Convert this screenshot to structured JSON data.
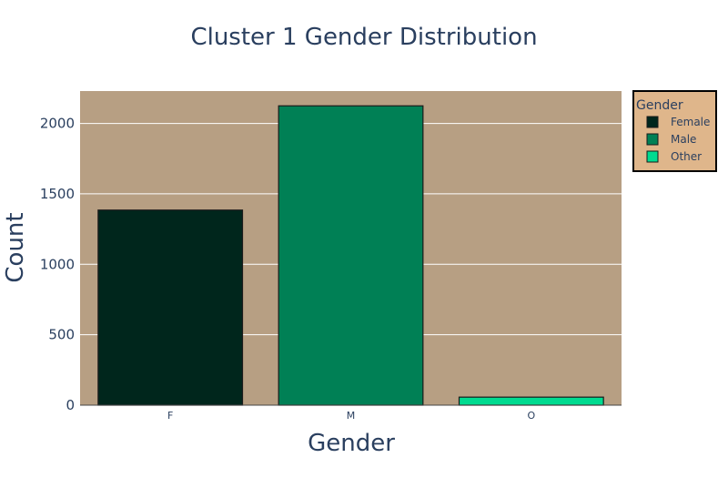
{
  "chart_data": {
    "type": "bar",
    "title": "Cluster 1 Gender Distribution",
    "xlabel": "Gender",
    "ylabel": "Count",
    "categories": [
      "F",
      "M",
      "O"
    ],
    "values": [
      1385,
      2125,
      57
    ],
    "ylim": [
      0,
      2230
    ],
    "yticks": [
      "0",
      "500",
      "1000",
      "1500",
      "2000"
    ],
    "ytick_values": [
      0,
      500,
      1000,
      1500,
      2000
    ],
    "grid": true,
    "legend": {
      "title": "Gender",
      "placement": "top-right",
      "items": [
        {
          "name": "Female",
          "color": "#00261c"
        },
        {
          "name": "Male",
          "color": "#008055"
        },
        {
          "name": "Other",
          "color": "#00db90"
        }
      ]
    },
    "colors": {
      "plot_background": "#b79f83",
      "legend_background": "#dfb68b",
      "gridline": "#ffffff",
      "bar_outline": "#1a1a1a"
    }
  }
}
